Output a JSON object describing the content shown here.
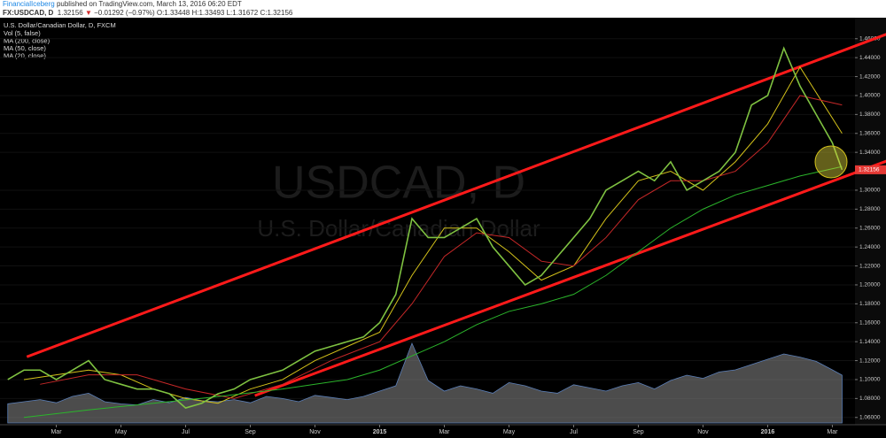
{
  "header": {
    "author": "FinancialIceberg",
    "published": "published on TradingView.com, March 13, 2016 06:20 EDT",
    "symbol": "FX:USDCAD, D",
    "last": "1.32156",
    "arrow": "▼",
    "change": "−0.01292 (−0.97%)",
    "open": "O:1.33448",
    "high": "H:1.33493",
    "low": "L:1.31672",
    "close": "C:1.32156"
  },
  "chart_data": {
    "type": "line",
    "title": "U.S. Dollar/Canadian Dollar, D, FXCM",
    "indicators": [
      "Vol (5, false)",
      "MA (200, close)",
      "MA (50, close)",
      "MA (20, close)"
    ],
    "watermark": "USDCAD, D",
    "watermark_sub": "U.S. Dollar/Canadian Dollar",
    "xlim": [
      0.26,
      26.7
    ],
    "xticks": [
      {
        "value": 2,
        "label": "Mar"
      },
      {
        "value": 4,
        "label": "May"
      },
      {
        "value": 6,
        "label": "Jul"
      },
      {
        "value": 8,
        "label": "Sep"
      },
      {
        "value": 10,
        "label": "Nov"
      },
      {
        "value": 12,
        "label": "2015"
      },
      {
        "value": 14,
        "label": "Mar"
      },
      {
        "value": 16,
        "label": "May"
      },
      {
        "value": 18,
        "label": "Jul"
      },
      {
        "value": 20,
        "label": "Sep"
      },
      {
        "value": 22,
        "label": "Nov"
      },
      {
        "value": 24,
        "label": "2016"
      },
      {
        "value": 26,
        "label": "Mar"
      }
    ],
    "ylim": [
      1.0523,
      1.4822
    ],
    "yticks": [
      {
        "value": 1.06,
        "label": "1.06000"
      },
      {
        "value": 1.08,
        "label": "1.08000"
      },
      {
        "value": 1.1,
        "label": "1.10000"
      },
      {
        "value": 1.12,
        "label": "1.12000"
      },
      {
        "value": 1.14,
        "label": "1.14000"
      },
      {
        "value": 1.16,
        "label": "1.16000"
      },
      {
        "value": 1.18,
        "label": "1.18000"
      },
      {
        "value": 1.2,
        "label": "1.20000"
      },
      {
        "value": 1.22,
        "label": "1.22000"
      },
      {
        "value": 1.24,
        "label": "1.24000"
      },
      {
        "value": 1.26,
        "label": "1.26000"
      },
      {
        "value": 1.28,
        "label": "1.28000"
      },
      {
        "value": 1.3,
        "label": "1.30000"
      },
      {
        "value": 1.34,
        "label": "1.34000"
      },
      {
        "value": 1.36,
        "label": "1.36000"
      },
      {
        "value": 1.38,
        "label": "1.38000"
      },
      {
        "value": 1.4,
        "label": "1.40000"
      },
      {
        "value": 1.42,
        "label": "1.42000"
      },
      {
        "value": 1.44,
        "label": "1.44000"
      },
      {
        "value": 1.46,
        "label": "1.46000"
      }
    ],
    "last_price": 1.32156,
    "series": [
      {
        "color": "#7fc241",
        "x": [
          0.5,
          1,
          1.5,
          2,
          2.5,
          3,
          3.5,
          4,
          4.5,
          5,
          5.5,
          6,
          6.5,
          7,
          7.5,
          8,
          8.5,
          9,
          9.5,
          10,
          10.5,
          11,
          11.5,
          12,
          12.5,
          13,
          13.5,
          14,
          14.5,
          15,
          15.5,
          16,
          16.5,
          17,
          17.5,
          18,
          18.5,
          19,
          19.5,
          20,
          20.5,
          21,
          21.5,
          22,
          22.5,
          23,
          23.5,
          24,
          24.5,
          25,
          25.5,
          26,
          26.3
        ],
        "values": [
          1.1,
          1.11,
          1.11,
          1.1,
          1.11,
          1.12,
          1.1,
          1.095,
          1.09,
          1.09,
          1.085,
          1.07,
          1.075,
          1.085,
          1.09,
          1.1,
          1.105,
          1.11,
          1.12,
          1.13,
          1.135,
          1.14,
          1.145,
          1.16,
          1.19,
          1.27,
          1.25,
          1.25,
          1.26,
          1.27,
          1.24,
          1.22,
          1.2,
          1.21,
          1.23,
          1.25,
          1.27,
          1.3,
          1.31,
          1.32,
          1.31,
          1.33,
          1.3,
          1.31,
          1.32,
          1.34,
          1.39,
          1.4,
          1.45,
          1.41,
          1.38,
          1.35,
          1.32156
        ]
      },
      {
        "color": "#2bb52b",
        "x": [
          1,
          3,
          5,
          7,
          9,
          11,
          12,
          13,
          14,
          15,
          16,
          17,
          18,
          19,
          20,
          21,
          22,
          23,
          24,
          25,
          26.3
        ],
        "values": [
          1.06,
          1.068,
          1.075,
          1.082,
          1.09,
          1.1,
          1.11,
          1.125,
          1.14,
          1.158,
          1.172,
          1.18,
          1.19,
          1.21,
          1.235,
          1.26,
          1.28,
          1.295,
          1.305,
          1.315,
          1.325
        ]
      },
      {
        "color": "#c62828",
        "x": [
          1.5,
          3,
          4.5,
          6,
          7.5,
          9,
          10.5,
          12,
          13,
          14,
          15,
          16,
          17,
          18,
          19,
          20,
          21,
          22,
          23,
          24,
          25,
          26.3
        ],
        "values": [
          1.095,
          1.105,
          1.105,
          1.09,
          1.08,
          1.095,
          1.12,
          1.14,
          1.18,
          1.23,
          1.255,
          1.25,
          1.225,
          1.22,
          1.25,
          1.29,
          1.31,
          1.31,
          1.32,
          1.35,
          1.4,
          1.39
        ]
      },
      {
        "color": "#d4c21a",
        "x": [
          1,
          2,
          3,
          4,
          5,
          6,
          7,
          8,
          9,
          10,
          11,
          12,
          13,
          14,
          15,
          16,
          17,
          18,
          19,
          20,
          21,
          22,
          23,
          24,
          25,
          26.3
        ],
        "values": [
          1.1,
          1.105,
          1.11,
          1.105,
          1.09,
          1.08,
          1.075,
          1.09,
          1.1,
          1.12,
          1.135,
          1.15,
          1.21,
          1.26,
          1.26,
          1.235,
          1.205,
          1.22,
          1.27,
          1.31,
          1.32,
          1.3,
          1.33,
          1.37,
          1.43,
          1.36
        ]
      }
    ],
    "trend_lines": [
      {
        "color": "#ff1a1a",
        "x": [
          1.09,
          27.93
        ],
        "values": [
          1.124,
          1.468
        ]
      },
      {
        "color": "#ff1a1a",
        "x": [
          8.14,
          27.93
        ],
        "values": [
          1.083,
          1.334
        ]
      }
    ],
    "volume": {
      "color": "#8a8a8a",
      "vlim": [
        0,
        100
      ],
      "values": [
        18,
        20,
        22,
        19,
        25,
        28,
        20,
        18,
        17,
        22,
        19,
        24,
        21,
        20,
        22,
        19,
        25,
        23,
        20,
        26,
        24,
        22,
        25,
        30,
        35,
        75,
        40,
        30,
        35,
        32,
        28,
        38,
        35,
        30,
        28,
        36,
        33,
        30,
        35,
        38,
        32,
        40,
        45,
        42,
        48,
        50,
        55,
        60,
        65,
        62,
        58,
        50,
        45
      ]
    }
  }
}
